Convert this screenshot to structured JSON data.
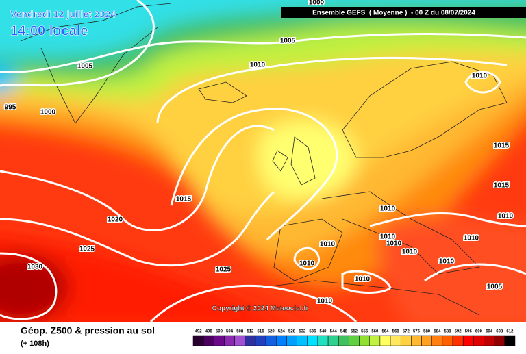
{
  "header": {
    "date": "Vendredi 12 juillet 2024",
    "time": "14:00 locale",
    "model": "Ensemble GEFS  ( Moyenne )  - 00 Z du 08/07/2024"
  },
  "isobar_labels": [
    1000,
    1005,
    1005,
    1010,
    995,
    1000,
    1010,
    1015,
    1015,
    1015,
    1020,
    1010,
    1010,
    1010,
    1010,
    1010,
    1010,
    1010,
    1025,
    1010,
    1010,
    1030,
    1025,
    1010,
    1005,
    1010
  ],
  "copyright": "Copyright © 2024 Meteociel.fr",
  "footer": {
    "title": "Géop. Z500 & pression au sol",
    "lead": "(+ 108h)"
  },
  "scale": {
    "values": [
      492,
      496,
      500,
      504,
      508,
      512,
      516,
      520,
      524,
      528,
      532,
      536,
      540,
      544,
      548,
      552,
      556,
      560,
      564,
      568,
      572,
      576,
      580,
      584,
      588,
      592,
      596,
      600,
      604,
      608,
      612
    ],
    "colors": [
      "#2a0030",
      "#4b0060",
      "#6a0a8a",
      "#8a2ab0",
      "#a050d0",
      "#3030a0",
      "#2040c0",
      "#1060e0",
      "#0080ff",
      "#00a0ff",
      "#00c0ff",
      "#00e0ff",
      "#20e0c0",
      "#30d090",
      "#40c060",
      "#60d040",
      "#90e030",
      "#c0f040",
      "#ffff60",
      "#ffe860",
      "#ffd040",
      "#ffb830",
      "#ffa020",
      "#ff8010",
      "#ff6000",
      "#ff3000",
      "#ff0000",
      "#e00000",
      "#c00000",
      "#900000",
      "#000000"
    ]
  }
}
